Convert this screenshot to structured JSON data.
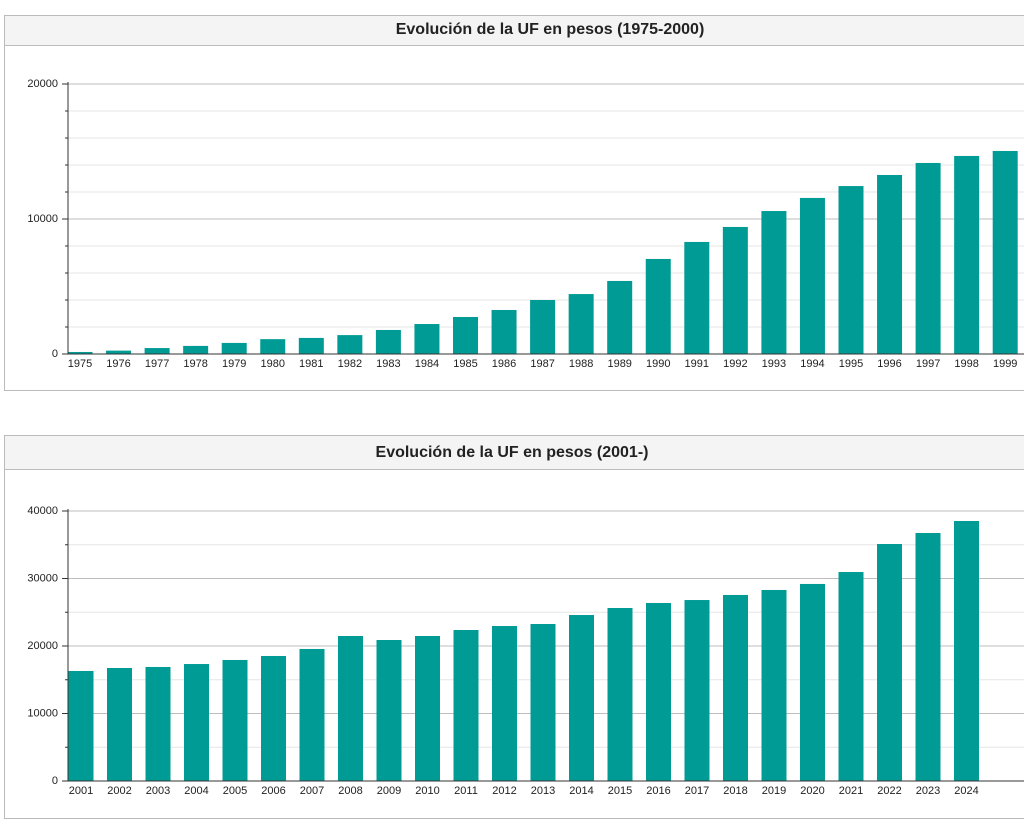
{
  "chart_data": [
    {
      "type": "bar",
      "title": "Evolución de la UF en pesos (1975-2000)",
      "categories": [
        "1975",
        "1976",
        "1977",
        "1978",
        "1979",
        "1980",
        "1981",
        "1982",
        "1983",
        "1984",
        "1985",
        "1986",
        "1987",
        "1988",
        "1989",
        "1990",
        "1991",
        "1992",
        "1993",
        "1994",
        "1995",
        "1996",
        "1997",
        "1998",
        "1999"
      ],
      "values": [
        150,
        250,
        440,
        600,
        820,
        1100,
        1190,
        1400,
        1780,
        2220,
        2740,
        3260,
        4000,
        4440,
        5410,
        7040,
        8300,
        9410,
        10590,
        11560,
        12440,
        13260,
        14150,
        14670,
        15040
      ],
      "color": "#009b94",
      "ylim": [
        0,
        20000
      ],
      "yticks": [
        0,
        10000,
        20000
      ],
      "minor_yticks": [
        2000,
        4000,
        6000,
        8000,
        12000,
        14000,
        16000,
        18000
      ],
      "grid": true
    },
    {
      "type": "bar",
      "title": "Evolución de la UF en pesos (2001-)",
      "categories": [
        "2001",
        "2002",
        "2003",
        "2004",
        "2005",
        "2006",
        "2007",
        "2008",
        "2009",
        "2010",
        "2011",
        "2012",
        "2013",
        "2014",
        "2015",
        "2016",
        "2017",
        "2018",
        "2019",
        "2020",
        "2021",
        "2022",
        "2023",
        "2024"
      ],
      "values": [
        16300,
        16740,
        16890,
        17330,
        17930,
        18520,
        19560,
        21480,
        20890,
        21480,
        22370,
        22960,
        23260,
        24590,
        25630,
        26370,
        26810,
        27560,
        28300,
        29190,
        30960,
        35110,
        36740,
        38520
      ],
      "color": "#009b94",
      "ylim": [
        0,
        40000
      ],
      "yticks": [
        0,
        10000,
        20000,
        30000,
        40000
      ],
      "minor_yticks": [
        5000,
        15000,
        25000,
        35000
      ],
      "grid": true
    }
  ]
}
